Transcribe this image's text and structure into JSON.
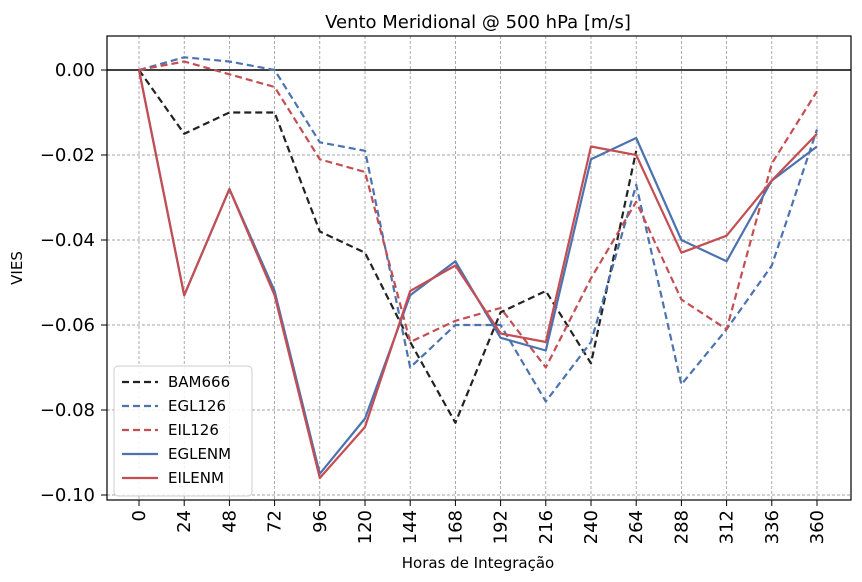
{
  "chart_data": {
    "type": "line",
    "title": "Vento Meridional @ 500 hPa [m/s]",
    "xlabel": "Horas de Integração",
    "ylabel": "VIES",
    "x": [
      0,
      24,
      48,
      72,
      96,
      120,
      144,
      168,
      192,
      216,
      240,
      264,
      288,
      312,
      336,
      360
    ],
    "x_tick_labels": [
      "0",
      "24",
      "48",
      "72",
      "96",
      "120",
      "144",
      "168",
      "192",
      "216",
      "240",
      "264",
      "288",
      "312",
      "336",
      "360"
    ],
    "y_ticks": [
      0.0,
      -0.02,
      -0.04,
      -0.06,
      -0.08,
      -0.1
    ],
    "y_tick_labels": [
      "0.00",
      "−0.02",
      "−0.04",
      "−0.06",
      "−0.08",
      "−0.10"
    ],
    "ylim": [
      -0.1,
      0.008
    ],
    "grid": true,
    "zero_line": true,
    "legend_position": "lower-left",
    "series": [
      {
        "name": "BAM666",
        "color": "#222222",
        "style": "dashed",
        "values": [
          0.0,
          -0.015,
          -0.01,
          -0.01,
          -0.038,
          -0.043,
          -0.064,
          -0.083,
          -0.057,
          -0.052,
          -0.069,
          -0.019,
          null,
          null,
          null,
          null
        ]
      },
      {
        "name": "EGL126",
        "color": "#4c72b0",
        "style": "dashed",
        "values": [
          0.0,
          0.003,
          0.002,
          0.0,
          -0.017,
          -0.019,
          -0.07,
          -0.06,
          -0.06,
          -0.078,
          -0.064,
          -0.027,
          -0.074,
          -0.061,
          -0.046,
          -0.014
        ]
      },
      {
        "name": "EIL126",
        "color": "#c44e52",
        "style": "dashed",
        "values": [
          0.0,
          0.002,
          -0.001,
          -0.004,
          -0.021,
          -0.024,
          -0.064,
          -0.059,
          -0.056,
          -0.07,
          -0.049,
          -0.031,
          -0.054,
          -0.061,
          -0.022,
          -0.005
        ]
      },
      {
        "name": "EGLENM",
        "color": "#4c72b0",
        "style": "solid",
        "values": [
          0.0,
          -0.053,
          -0.028,
          -0.052,
          -0.095,
          -0.082,
          -0.053,
          -0.045,
          -0.063,
          -0.066,
          -0.021,
          -0.016,
          -0.04,
          -0.045,
          -0.026,
          -0.018
        ]
      },
      {
        "name": "EILENM",
        "color": "#c44e52",
        "style": "solid",
        "values": [
          0.0,
          -0.053,
          -0.028,
          -0.053,
          -0.096,
          -0.084,
          -0.052,
          -0.046,
          -0.062,
          -0.064,
          -0.018,
          -0.02,
          -0.043,
          -0.039,
          -0.026,
          -0.015
        ]
      }
    ]
  }
}
